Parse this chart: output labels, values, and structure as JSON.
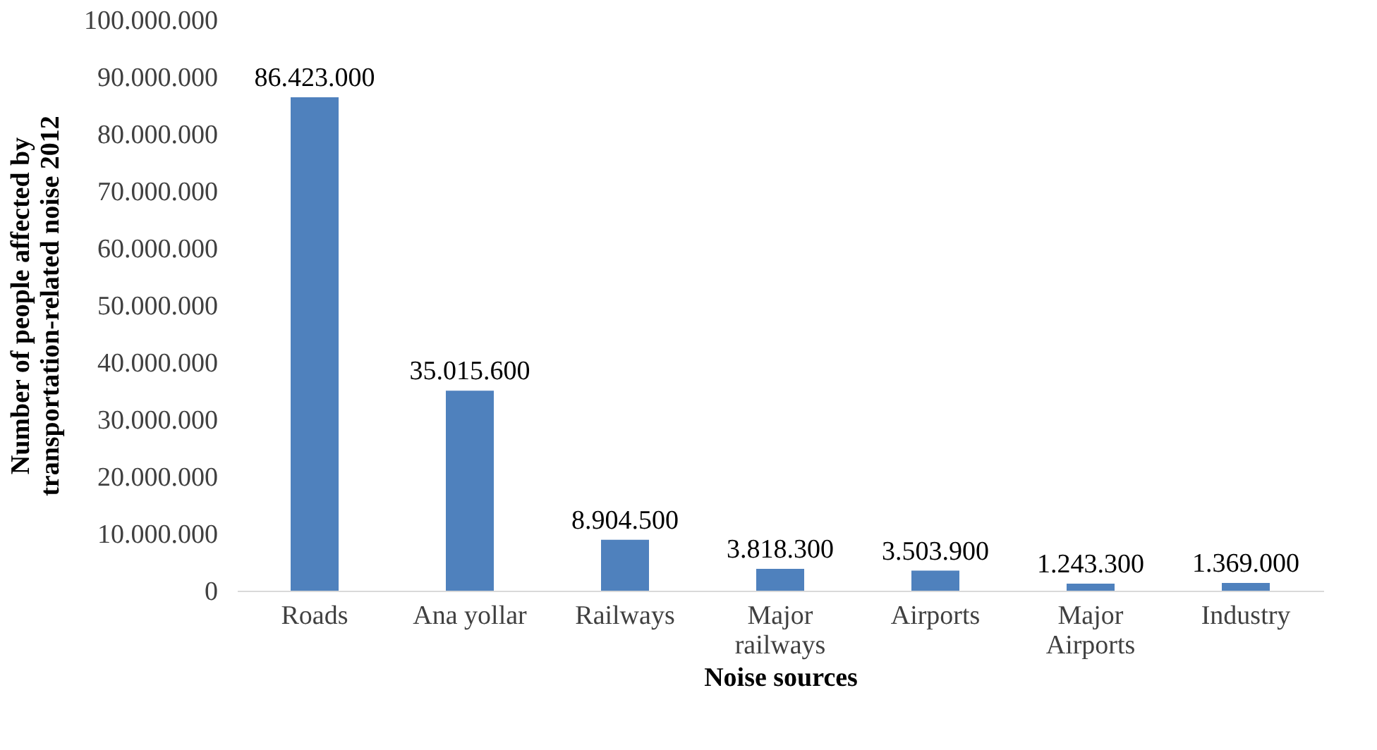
{
  "chart_data": {
    "type": "bar",
    "xlabel": "Noise sources",
    "ylabel": "Number of people affected by transportation-related noise 2012",
    "categories": [
      "Roads",
      "Ana yollar",
      "Railways",
      "Major railways",
      "Airports",
      "Major Airports",
      "Industry"
    ],
    "values": [
      86423000,
      35015600,
      8904500,
      3818300,
      3503900,
      1243300,
      1369000
    ],
    "value_labels": [
      "86.423.000",
      "35.015.600",
      "8.904.500",
      "3.818.300",
      "3.503.900",
      "1.243.300",
      "1.369.000"
    ],
    "color": "#4f81bd",
    "ylim": [
      0,
      100000000
    ],
    "yticks": [
      0,
      {
        "value": 10000000,
        "label": "10.000.000"
      },
      {
        "value": 20000000,
        "label": "20.000.000"
      },
      {
        "value": 30000000,
        "label": "30.000.000"
      },
      {
        "value": 40000000,
        "label": "40.000.000"
      },
      {
        "value": 50000000,
        "label": "50.000.000"
      },
      {
        "value": 60000000,
        "label": "60.000.000"
      },
      {
        "value": 70000000,
        "label": "70.000.000"
      },
      {
        "value": 80000000,
        "label": "80.000.000"
      },
      {
        "value": 90000000,
        "label": "90.000.000"
      },
      {
        "value": 100000000,
        "label": "100.000.000"
      }
    ],
    "grid": false
  }
}
